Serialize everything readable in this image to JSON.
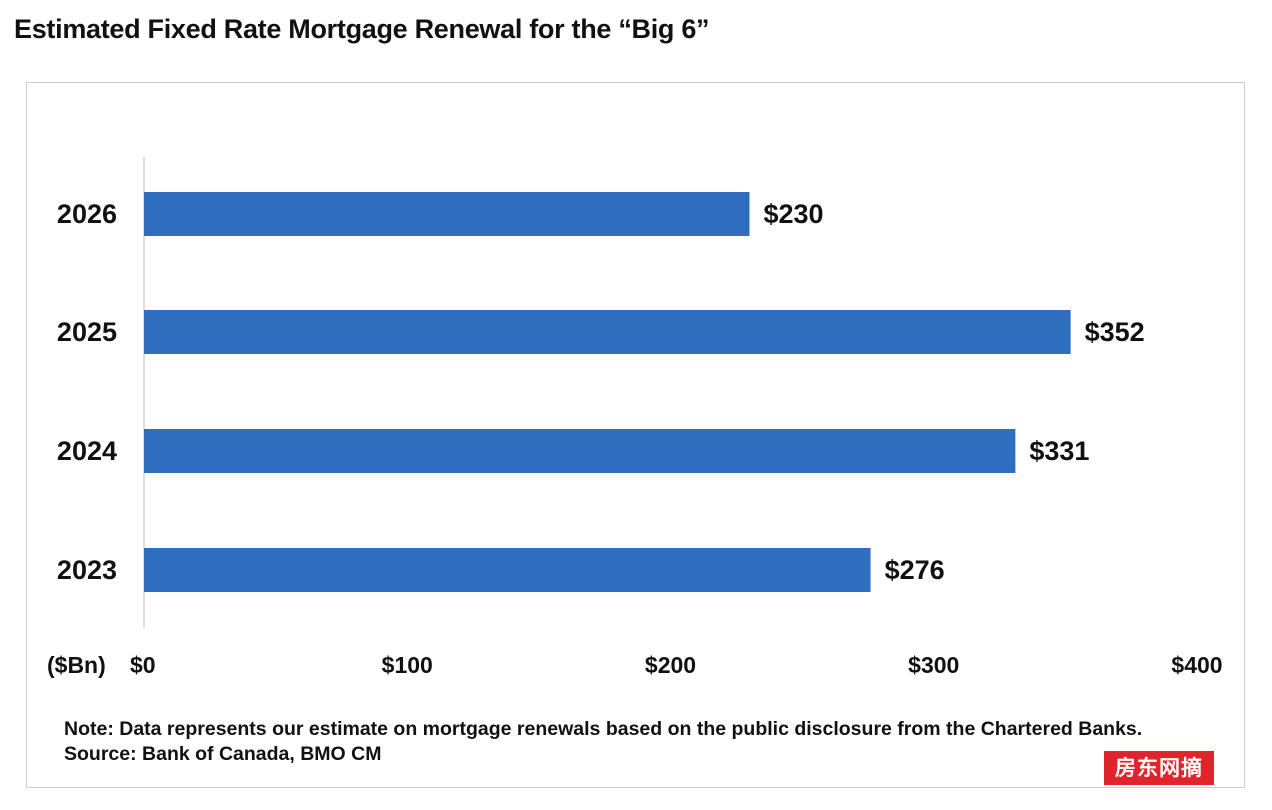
{
  "header": {
    "title": "Estimated Fixed Rate Mortgage Renewal for the “Big 6”"
  },
  "chart_data": {
    "type": "bar",
    "orientation": "horizontal",
    "title": "Estimated Fixed Rate Mortgage Renewal for the “Big 6”",
    "categories": [
      "2026",
      "2025",
      "2024",
      "2023"
    ],
    "values": [
      230,
      352,
      331,
      276
    ],
    "data_labels": [
      "$230",
      "$352",
      "$331",
      "$276"
    ],
    "unit_label": "($Bn)",
    "xlim": [
      0,
      400
    ],
    "x_ticks": [
      0,
      100,
      200,
      300,
      400
    ],
    "x_tick_labels": [
      "$0",
      "$100",
      "$200",
      "$300",
      "$400"
    ],
    "bar_color": "#2f6ebf",
    "grid": false,
    "legend": "none"
  },
  "footer": {
    "note": "Note: Data represents our estimate on mortgage renewals based on the public disclosure from the Chartered Banks.",
    "source": "Source: Bank of Canada, BMO CM"
  },
  "watermark": {
    "text": "房东网摘",
    "color": "#e0242b"
  }
}
